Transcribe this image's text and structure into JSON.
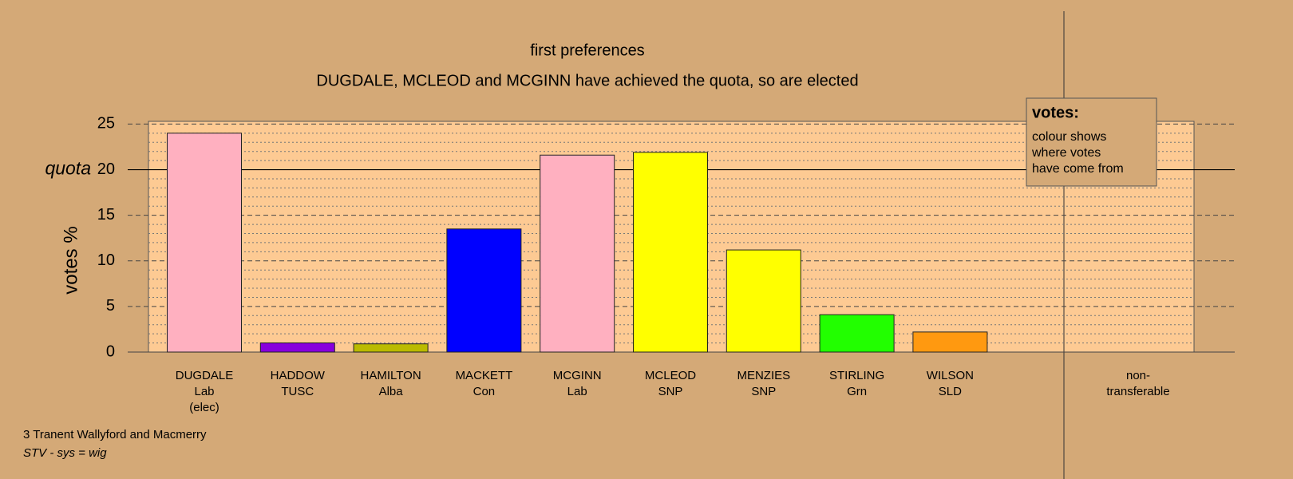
{
  "chart_data": {
    "type": "bar",
    "title": "first preferences",
    "subtitle": "DUGDALE, MCLEOD and MCGINN have achieved the quota, so are elected",
    "y_label": "votes %",
    "categories": [
      [
        "DUGDALE",
        "Lab",
        "(elec)"
      ],
      [
        "HADDOW",
        "TUSC"
      ],
      [
        "HAMILTON",
        "Alba"
      ],
      [
        "MACKETT",
        "Con"
      ],
      [
        "MCGINN",
        "Lab"
      ],
      [
        "MCLEOD",
        "SNP"
      ],
      [
        "MENZIES",
        "SNP"
      ],
      [
        "STIRLING",
        "Grn"
      ],
      [
        "WILSON",
        "SLD"
      ],
      [
        "non-",
        "transferable"
      ]
    ],
    "values": [
      24.0,
      1.0,
      0.9,
      13.5,
      21.6,
      21.9,
      11.2,
      4.1,
      2.2,
      null
    ],
    "colors": [
      "#ffb0c0",
      "#8800dd",
      "#bbbb00",
      "#0000ff",
      "#ffb0c0",
      "#ffff00",
      "#ffff00",
      "#22ff00",
      "#ff9910",
      null
    ],
    "ylim": [
      0,
      25.3
    ],
    "yticks": [
      0,
      5,
      10,
      15,
      20,
      25
    ],
    "minor_yticks": [
      1,
      2,
      3,
      4,
      6,
      7,
      8,
      9,
      11,
      12,
      13,
      14,
      16,
      17,
      18,
      19,
      21,
      22,
      23,
      24
    ],
    "quota": {
      "value": 20,
      "label": "quota"
    },
    "legend": {
      "title": "votes:",
      "lines": [
        "colour shows",
        "where votes",
        "have come from"
      ]
    },
    "notes": [
      "3 Tranent Wallyford and Macmerry",
      "STV - sys = wig"
    ]
  }
}
